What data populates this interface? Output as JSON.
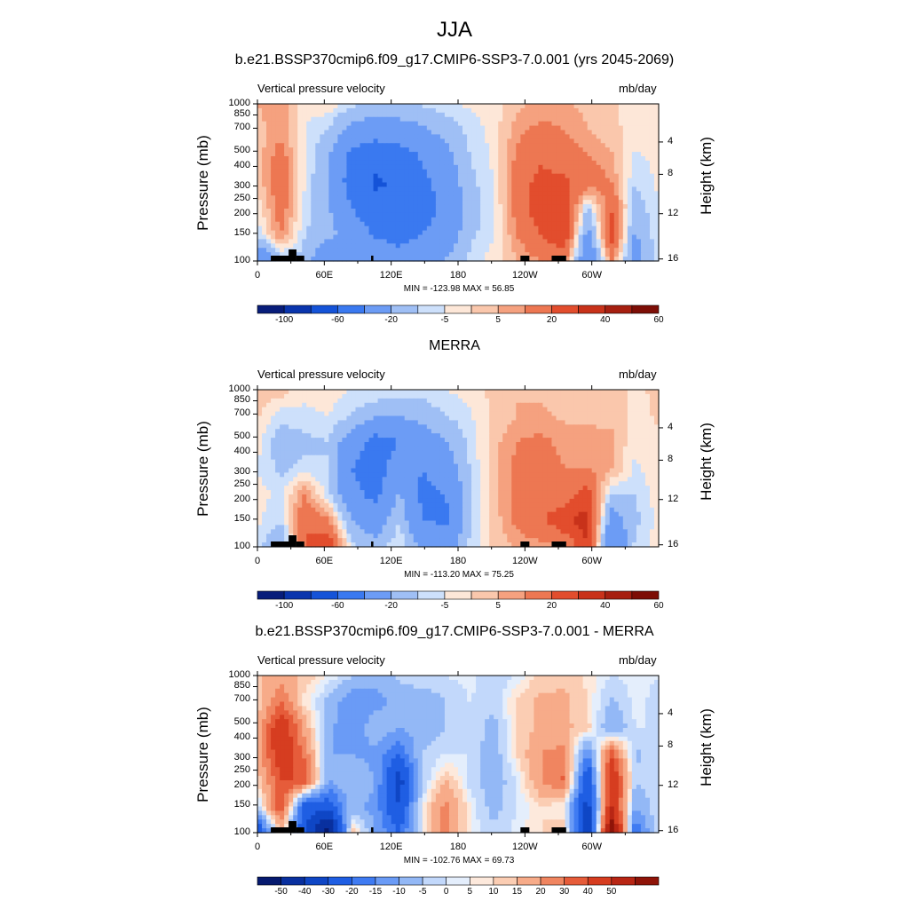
{
  "title": "JJA",
  "panels": [
    {
      "title": "b.e21.BSSP370cmip6.f09_g17.CMIP6-SSP3-7.0.001 (yrs 2045-2069)",
      "left_label": "Vertical pressure velocity",
      "right_label": "mb/day",
      "stats": "MIN = -123.98  MAX =  56.85",
      "kind": "field"
    },
    {
      "title": "MERRA",
      "left_label": "Vertical pressure velocity",
      "right_label": "mb/day",
      "stats": "MIN = -113.20  MAX =  75.25",
      "kind": "field"
    },
    {
      "title": "b.e21.BSSP370cmip6.f09_g17.CMIP6-SSP3-7.0.001 - MERRA",
      "left_label": "Vertical pressure velocity",
      "right_label": "mb/day",
      "stats": "MIN = -102.76  MAX =  69.73",
      "kind": "diff"
    }
  ],
  "chart_data": {
    "type": "heatmap",
    "ylabel": "Pressure (mb)",
    "y2label": "Height (km)",
    "x_ticks": [
      "0",
      "60E",
      "120E",
      "180",
      "120W",
      "60W"
    ],
    "x_tick_lon": [
      0,
      60,
      120,
      180,
      240,
      300
    ],
    "xlim": [
      0,
      360
    ],
    "y_ticks": [
      100,
      150,
      200,
      250,
      300,
      400,
      500,
      700,
      850,
      1000
    ],
    "ylim": [
      1000,
      100
    ],
    "y2_ticks": [
      4,
      8,
      12,
      16
    ],
    "colorbar_field": {
      "labels": [
        "-100",
        "-60",
        "-20",
        "-5",
        "5",
        "20",
        "40",
        "60"
      ],
      "colors": [
        "#081d7a",
        "#0a35ad",
        "#1453d8",
        "#3a79f0",
        "#6c9cf5",
        "#9fbff5",
        "#cde0fb",
        "#fde7d8",
        "#fac7ac",
        "#f5a17f",
        "#ed7752",
        "#e24d2d",
        "#c8321a",
        "#a61f10",
        "#7d0e06"
      ]
    },
    "colorbar_diff": {
      "labels": [
        "-50",
        "-40",
        "-30",
        "-20",
        "-15",
        "-10",
        "-5",
        "0",
        "5",
        "10",
        "15",
        "20",
        "30",
        "40",
        "50"
      ],
      "colors": [
        "#061a6f",
        "#09309f",
        "#0f46c5",
        "#1f5ee3",
        "#3f7bf2",
        "#6a9bf6",
        "#93b8f6",
        "#c2d8fb",
        "#e4eefc",
        "#fde9dc",
        "#fbcdb3",
        "#f7ab89",
        "#f08560",
        "#e65c3a",
        "#d63d20",
        "#b82614",
        "#8f1408"
      ]
    },
    "fields": [
      [
        [
          5,
          10,
          -3,
          -2,
          -8,
          -12,
          -10,
          -9,
          -6,
          -4,
          -2,
          3,
          7,
          6,
          3,
          1,
          -2,
          -1
        ],
        [
          3,
          8,
          -5,
          -10,
          -25,
          -30,
          -28,
          -22,
          -15,
          -8,
          -3,
          8,
          12,
          10,
          5,
          2,
          -3,
          -2
        ],
        [
          2,
          14,
          -4,
          -18,
          -45,
          -55,
          -50,
          -38,
          -25,
          -10,
          -4,
          12,
          18,
          14,
          10,
          6,
          -6,
          -3
        ],
        [
          2,
          16,
          -5,
          -20,
          -50,
          -62,
          -58,
          -45,
          -30,
          -12,
          -5,
          14,
          24,
          22,
          16,
          10,
          -10,
          -4
        ],
        [
          -4,
          15,
          -6,
          -18,
          -40,
          -55,
          -60,
          -50,
          -35,
          -15,
          -6,
          14,
          26,
          30,
          -12,
          20,
          -14,
          -5
        ],
        [
          -8,
          10,
          -10,
          -15,
          -28,
          -42,
          -48,
          -40,
          -30,
          -12,
          -5,
          10,
          20,
          28,
          -25,
          24,
          -22,
          -5
        ],
        [
          -40,
          -15,
          -12,
          -40,
          -20,
          -25,
          -30,
          -25,
          -18,
          -8,
          -3,
          5,
          10,
          14,
          -40,
          12,
          -28,
          -4
        ]
      ],
      [
        [
          2,
          3,
          -4,
          -2,
          -5,
          -4,
          -6,
          -8,
          -5,
          -3,
          2,
          5,
          4,
          3,
          2,
          3,
          -1,
          1
        ],
        [
          1,
          -8,
          -6,
          -5,
          -10,
          -18,
          -20,
          -14,
          -10,
          -6,
          1,
          5,
          6,
          4,
          3,
          4,
          -2,
          1
        ],
        [
          -3,
          -15,
          -12,
          -10,
          -30,
          -48,
          -40,
          -30,
          -20,
          -8,
          3,
          10,
          12,
          8,
          8,
          6,
          -4,
          -1
        ],
        [
          -5,
          -12,
          -8,
          -10,
          -40,
          -50,
          -30,
          -40,
          -28,
          -10,
          3,
          12,
          14,
          10,
          10,
          6,
          -6,
          -2
        ],
        [
          -3,
          -6,
          10,
          -8,
          -35,
          -45,
          -18,
          -45,
          -40,
          -12,
          2,
          14,
          16,
          14,
          25,
          -10,
          -10,
          -2
        ],
        [
          -4,
          -10,
          20,
          12,
          -20,
          -30,
          -10,
          -40,
          -42,
          -12,
          2,
          12,
          18,
          28,
          35,
          -30,
          -12,
          -3
        ],
        [
          -8,
          -20,
          20,
          30,
          -8,
          -15,
          -4,
          -25,
          -30,
          -8,
          1,
          6,
          8,
          10,
          30,
          -40,
          -8,
          -2
        ]
      ],
      [
        [
          4,
          8,
          4,
          0,
          -4,
          -8,
          -4,
          -2,
          -2,
          -1,
          -4,
          -2,
          3,
          4,
          1,
          -2,
          -1,
          -2
        ],
        [
          2,
          15,
          1,
          -6,
          -15,
          -12,
          -8,
          -8,
          -5,
          -2,
          -4,
          3,
          6,
          6,
          2,
          -6,
          -1,
          -3
        ],
        [
          6,
          28,
          8,
          -8,
          -15,
          -6,
          -10,
          -8,
          -5,
          -2,
          -7,
          2,
          6,
          6,
          3,
          -10,
          -2,
          -2
        ],
        [
          8,
          26,
          14,
          -10,
          -10,
          -12,
          -20,
          -5,
          -2,
          -2,
          -8,
          2,
          10,
          12,
          -15,
          18,
          -6,
          -2
        ],
        [
          2,
          20,
          20,
          -10,
          -5,
          -10,
          -35,
          -5,
          5,
          -3,
          -8,
          -2,
          10,
          16,
          -30,
          30,
          -4,
          -3
        ],
        [
          -4,
          20,
          -25,
          -25,
          -8,
          -12,
          -30,
          0,
          12,
          0,
          -7,
          -2,
          2,
          0,
          -35,
          30,
          -10,
          -2
        ],
        [
          -30,
          5,
          -30,
          -60,
          5,
          -10,
          -20,
          0,
          12,
          0,
          -4,
          -1,
          2,
          4,
          -40,
          50,
          -20,
          -2
        ]
      ]
    ]
  }
}
